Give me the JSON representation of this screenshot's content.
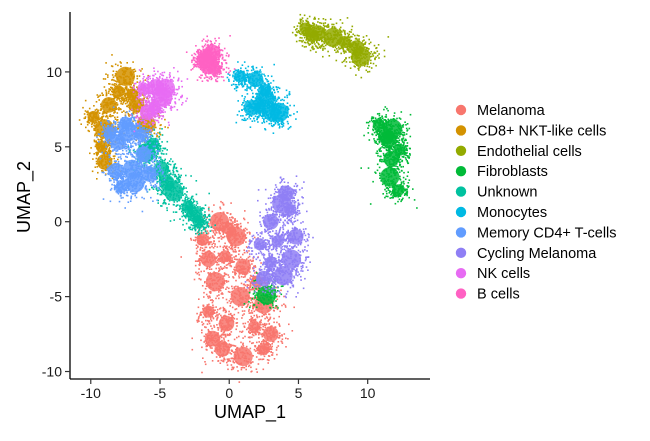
{
  "chart_data": {
    "type": "scatter",
    "title": "",
    "xlabel": "UMAP_1",
    "ylabel": "UMAP_2",
    "xlim": [
      -11.5,
      14.5
    ],
    "ylim": [
      -10.5,
      14
    ],
    "xticks": [
      -10,
      -5,
      0,
      5,
      10
    ],
    "yticks": [
      -10,
      -5,
      0,
      5,
      10
    ],
    "grid": false,
    "legend_position": "right",
    "series": [
      {
        "name": "Melanoma",
        "color": "#F8766D"
      },
      {
        "name": "CD8+ NKT-like cells",
        "color": "#D39200"
      },
      {
        "name": "Endothelial cells",
        "color": "#93AA00"
      },
      {
        "name": "Fibroblasts",
        "color": "#00BA38"
      },
      {
        "name": "Unknown",
        "color": "#00C19F"
      },
      {
        "name": "Monocytes",
        "color": "#00B9E3"
      },
      {
        "name": "Memory CD4+ T-cells",
        "color": "#619CFF"
      },
      {
        "name": "Cycling Melanoma",
        "color": "#8F7FF5"
      },
      {
        "name": "NK cells",
        "color": "#E76BF3"
      },
      {
        "name": "B cells",
        "color": "#FF61C3"
      }
    ],
    "clusters": [
      {
        "series": 0,
        "points": [
          [
            -1.9,
            -1.2
          ],
          [
            -1.5,
            -2.5
          ],
          [
            -1.0,
            -4.0
          ],
          [
            -1.5,
            -6.0
          ],
          [
            -0.5,
            -8.5
          ],
          [
            1.0,
            -9.0
          ],
          [
            2.5,
            -8.5
          ],
          [
            3.0,
            -7.5
          ],
          [
            2.5,
            -5.5
          ],
          [
            2.0,
            -4.0
          ],
          [
            1.0,
            -3.0
          ],
          [
            0.5,
            -1.0
          ],
          [
            -0.3,
            -2.3
          ],
          [
            -0.2,
            -6.8
          ],
          [
            0.8,
            -5.0
          ],
          [
            1.8,
            -7.0
          ],
          [
            -1.2,
            -7.8
          ],
          [
            -0.7,
            0.0
          ],
          [
            0.0,
            -0.5
          ]
        ]
      },
      {
        "series": 1,
        "points": [
          [
            -9.8,
            7.0
          ],
          [
            -8.7,
            7.8
          ],
          [
            -7.5,
            9.7
          ],
          [
            -7.0,
            8.5
          ],
          [
            -6.7,
            7.8
          ],
          [
            -9.0,
            6.2
          ],
          [
            -9.2,
            5.0
          ],
          [
            -9.0,
            4.0
          ],
          [
            -6.0,
            6.5
          ],
          [
            -8.0,
            8.7
          ]
        ]
      },
      {
        "series": 2,
        "points": [
          [
            5.5,
            12.9
          ],
          [
            6.4,
            12.6
          ],
          [
            7.5,
            12.3
          ],
          [
            8.3,
            12.0
          ],
          [
            9.2,
            11.6
          ],
          [
            9.5,
            11.0
          ],
          [
            6.0,
            12.4
          ]
        ]
      },
      {
        "series": 3,
        "points": [
          [
            10.8,
            6.5
          ],
          [
            11.5,
            5.5
          ],
          [
            11.8,
            6.2
          ],
          [
            12.3,
            4.8
          ],
          [
            11.7,
            4.2
          ],
          [
            11.6,
            3.0
          ],
          [
            12.2,
            2.1
          ],
          [
            11.3,
            5.7
          ],
          [
            2.7,
            -4.9
          ]
        ]
      },
      {
        "series": 4,
        "points": [
          [
            -5.5,
            5.2
          ],
          [
            -4.9,
            3.5
          ],
          [
            -4.0,
            2.0
          ],
          [
            -3.0,
            1.0
          ],
          [
            -2.5,
            0.5
          ],
          [
            -6.0,
            4.6
          ],
          [
            -2.2,
            0.0
          ],
          [
            -4.5,
            2.6
          ]
        ]
      },
      {
        "series": 5,
        "points": [
          [
            0.8,
            9.7
          ],
          [
            1.9,
            9.5
          ],
          [
            2.6,
            8.2
          ],
          [
            2.2,
            7.6
          ],
          [
            3.1,
            7.2
          ],
          [
            3.6,
            7.3
          ],
          [
            2.6,
            8.8
          ],
          [
            1.6,
            7.6
          ]
        ]
      },
      {
        "series": 6,
        "points": [
          [
            -8.6,
            5.9
          ],
          [
            -8.0,
            5.3
          ],
          [
            -7.3,
            6.0
          ],
          [
            -6.4,
            5.8
          ],
          [
            -6.2,
            4.5
          ],
          [
            -7.0,
            3.5
          ],
          [
            -7.8,
            2.3
          ],
          [
            -8.2,
            3.4
          ],
          [
            -6.8,
            2.6
          ],
          [
            -7.5,
            6.6
          ],
          [
            -5.8,
            3.2
          ]
        ]
      },
      {
        "series": 7,
        "points": [
          [
            2.2,
            -1.5
          ],
          [
            3.0,
            0.0
          ],
          [
            3.8,
            1.2
          ],
          [
            4.4,
            0.8
          ],
          [
            4.8,
            -1.0
          ],
          [
            4.5,
            -2.5
          ],
          [
            3.0,
            -2.7
          ],
          [
            2.5,
            -3.8
          ],
          [
            3.9,
            -3.6
          ],
          [
            3.5,
            -1.3
          ],
          [
            4.1,
            1.9
          ]
        ]
      },
      {
        "series": 8,
        "points": [
          [
            -6.2,
            8.9
          ],
          [
            -5.3,
            9.0
          ],
          [
            -4.8,
            8.3
          ],
          [
            -5.4,
            7.7
          ],
          [
            -5.9,
            7.3
          ],
          [
            -4.6,
            8.9
          ]
        ]
      },
      {
        "series": 9,
        "points": [
          [
            -1.7,
            11.1
          ],
          [
            -1.2,
            11.3
          ],
          [
            -1.5,
            10.5
          ],
          [
            -1.1,
            10.2
          ],
          [
            -1.8,
            10.8
          ]
        ]
      }
    ]
  }
}
